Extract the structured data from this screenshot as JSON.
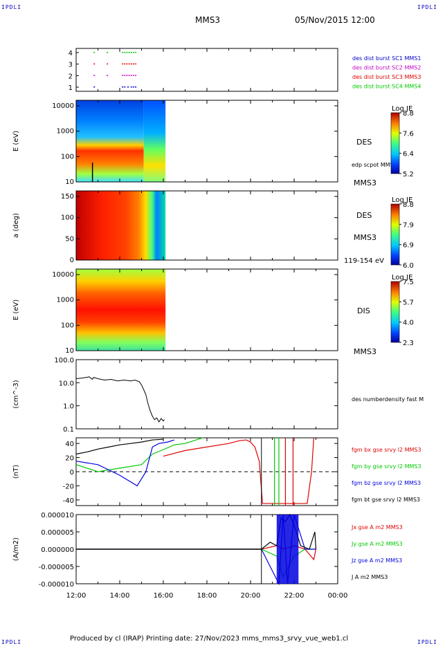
{
  "header": {
    "corner_tl": "IPDLI",
    "corner_tr": "IPDLI",
    "corner_bl": "IPDLI",
    "corner_br": "IPDLI",
    "spacecraft": "MMS3",
    "datetime": "05/Nov/2015 12:00"
  },
  "footer": {
    "text": "Produced by cl (IRAP)   Printing date: 27/Nov/2023   mms_mms3_srvy_vue_web1.cl"
  },
  "colors": {
    "mms1": "#0000c8",
    "mms2": "#c800c8",
    "mms3": "#e00000",
    "mms4": "#00c800",
    "bx": "#e00000",
    "by": "#00c800",
    "bz": "#0000e0",
    "bt": "#000000"
  },
  "chart_data": [
    {
      "type": "scatter",
      "panel": "burst-availability",
      "yticks": [
        "4",
        "3",
        "2",
        "1"
      ],
      "ylim": [
        0.5,
        4.5
      ],
      "legend": [
        "des dist burst SC1 MMS1",
        "des dist burst SC2 MMS2",
        "des dist burst SC3 MMS3",
        "des dist burst SC4 MMS4"
      ],
      "series": [
        {
          "name": "des dist burst SC1 MMS1",
          "level": 1,
          "x_hours": [
            12.8,
            14.1,
            14.2,
            14.35,
            14.5,
            14.6,
            14.7
          ]
        },
        {
          "name": "des dist burst SC2 MMS2",
          "level": 2,
          "x_hours": [
            12.8,
            13.4,
            14.1,
            14.2,
            14.3,
            14.4,
            14.5,
            14.6,
            14.7
          ]
        },
        {
          "name": "des dist burst SC3 MMS3",
          "level": 3,
          "x_hours": [
            12.8,
            13.4,
            14.1,
            14.2,
            14.3,
            14.4,
            14.5,
            14.6,
            14.7
          ]
        },
        {
          "name": "des dist burst SC4 MMS4",
          "level": 4,
          "x_hours": [
            12.8,
            13.4,
            14.1,
            14.2,
            14.3,
            14.4,
            14.5,
            14.6,
            14.7
          ]
        }
      ]
    },
    {
      "type": "heatmap",
      "panel": "des-energy",
      "ylabel": "E (eV)",
      "yscale": "log",
      "ylim": [
        10,
        30000
      ],
      "yticks": [
        "10000",
        "1000",
        "100",
        "10"
      ],
      "instrument": "DES",
      "extra_label": "edp scpot MMS3",
      "sc_label": "MMS3",
      "colorbar": {
        "title": "Log JE",
        "ticks": [
          "8.8",
          "7.6",
          "6.4",
          "5.2"
        ]
      },
      "data_x_range": [
        12.0,
        16.1
      ]
    },
    {
      "type": "heatmap",
      "panel": "des-pitch",
      "ylabel": "a (deg)",
      "ylim": [
        0,
        180
      ],
      "yticks": [
        "150",
        "100",
        "50",
        "0"
      ],
      "instrument": "DES",
      "sc_label": "MMS3",
      "energy_label": "119-154 eV",
      "colorbar": {
        "title": "Log JE",
        "ticks": [
          "8.8",
          "7.9",
          "6.9",
          "6.0"
        ]
      },
      "data_x_range": [
        12.0,
        16.1
      ]
    },
    {
      "type": "heatmap",
      "panel": "dis-energy",
      "ylabel": "E (eV)",
      "yscale": "log",
      "ylim": [
        10,
        30000
      ],
      "yticks": [
        "10000",
        "1000",
        "100",
        "10"
      ],
      "instrument": "DIS",
      "sc_label": "MMS3",
      "colorbar": {
        "title": "Log JE",
        "ticks": [
          "7.5",
          "5.7",
          "4.0",
          "2.3"
        ]
      },
      "data_x_range": [
        12.0,
        16.1
      ]
    },
    {
      "type": "line",
      "panel": "density",
      "ylabel": "(cm^-3)",
      "yscale": "log",
      "ylim": [
        0.1,
        100
      ],
      "yticks": [
        "100.0",
        "10.0",
        "1.0",
        "0.1"
      ],
      "legend": [
        "des numberdensity fast M"
      ],
      "x_hours": [
        12.0,
        12.3,
        12.6,
        12.75,
        12.8,
        13.0,
        13.3,
        13.6,
        13.9,
        14.2,
        14.5,
        14.7,
        14.9,
        15.0,
        15.1,
        15.2,
        15.3,
        15.4,
        15.5,
        15.6,
        15.7,
        15.8,
        15.9,
        16.0,
        16.05
      ],
      "y": [
        15,
        16,
        18,
        14,
        17,
        15,
        13,
        14,
        12,
        13,
        12,
        13,
        11,
        8,
        5,
        3,
        1.2,
        0.6,
        0.35,
        0.25,
        0.3,
        0.2,
        0.28,
        0.22,
        0.25
      ]
    },
    {
      "type": "line",
      "panel": "magnetic-field",
      "ylabel": "(nT)",
      "ylim": [
        -48,
        48
      ],
      "yticks": [
        "40",
        "20",
        "0",
        "-20",
        "-40"
      ],
      "zero_line": "dashed",
      "series": [
        {
          "name": "fgm bx gse srvy l2 MMS3",
          "x_hours": [
            16.0,
            17.0,
            18.0,
            19.0,
            19.5,
            19.8,
            20.0,
            20.2,
            20.4,
            20.55,
            22.6,
            22.8,
            22.9
          ],
          "y": [
            22,
            30,
            35,
            40,
            44,
            45,
            42,
            35,
            15,
            -45,
            -45,
            0,
            48
          ]
        },
        {
          "name": "fgm by gse srvy l2 MMS3",
          "x_hours": [
            12.0,
            13.0,
            14.0,
            15.0,
            15.5,
            15.9,
            16.5,
            17.0,
            17.5,
            17.8
          ],
          "y": [
            10,
            0,
            5,
            10,
            25,
            30,
            38,
            40,
            45,
            48
          ]
        },
        {
          "name": "fgm bz gse srvy l2 MMS3",
          "x_hours": [
            12.0,
            13.0,
            14.0,
            14.8,
            15.2,
            15.5,
            15.8,
            16.2,
            16.5
          ],
          "y": [
            15,
            10,
            -5,
            -20,
            0,
            35,
            40,
            42,
            45
          ]
        },
        {
          "name": "fgm bt gse srvy l2 MMS3",
          "x_hours": [
            12.0,
            12.5,
            13.0,
            13.5,
            14.0,
            14.5,
            15.0,
            15.5,
            16.0
          ],
          "y": [
            25,
            28,
            32,
            35,
            38,
            40,
            42,
            45,
            46
          ]
        }
      ]
    },
    {
      "type": "line",
      "panel": "current-density",
      "ylabel": "(A/m2)",
      "ylim": [
        -1e-05,
        1e-05
      ],
      "yticks": [
        "0.000010",
        "0.000005",
        "0.000000",
        "-0.000005",
        "-0.000010"
      ],
      "xticks": [
        "12:00",
        "14:00",
        "16:00",
        "18:00",
        "20:00",
        "22:00",
        "00:00"
      ],
      "xlim_hours": [
        12,
        24
      ],
      "series": [
        {
          "name": "Jx gse A m2 MMS3",
          "x_hours": [
            12.0,
            15.0,
            20.5,
            21.2,
            21.5,
            22.0,
            22.5,
            22.9,
            23.0
          ],
          "y": [
            0,
            0,
            0,
            1e-06,
            0,
            1e-06,
            0,
            -3e-06,
            0
          ]
        },
        {
          "name": "Jy gse A m2 MMS3",
          "x_hours": [
            12.0,
            15.0,
            20.5,
            21.2,
            21.5,
            22.0,
            22.5,
            23.0
          ],
          "y": [
            0,
            0,
            0,
            -2e-06,
            -8e-06,
            -2e-06,
            0,
            0
          ]
        },
        {
          "name": "Jz gse A m2 MMS3",
          "x_hours": [
            12.0,
            15.0,
            20.5,
            21.3,
            21.5,
            21.7,
            22.0,
            22.5,
            23.0
          ],
          "y": [
            0,
            0,
            0,
            -1e-05,
            1e-05,
            -1e-05,
            1e-05,
            0,
            0
          ]
        },
        {
          "name": "J A m2 MMS3",
          "x_hours": [
            12.0,
            15.0,
            20.5,
            20.9,
            21.2,
            21.4,
            21.6,
            21.8,
            22.0,
            22.3,
            22.7,
            22.95,
            23.0
          ],
          "y": [
            0,
            0,
            0,
            2e-06,
            1e-06,
            9e-06,
            8e-06,
            1e-05,
            7e-06,
            1e-06,
            0,
            5e-06,
            0
          ]
        }
      ]
    }
  ]
}
